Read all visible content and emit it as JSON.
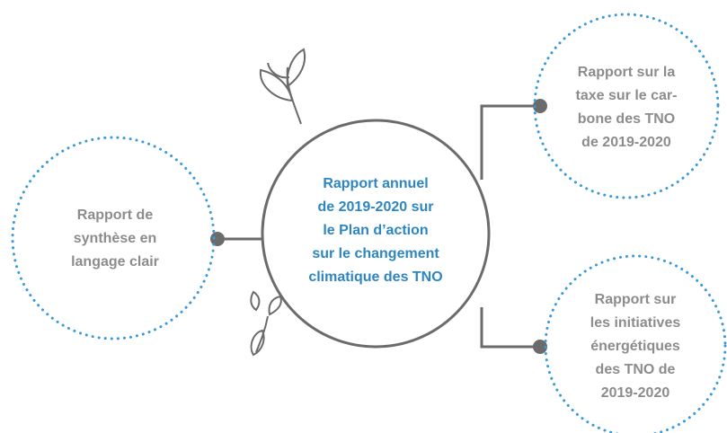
{
  "nodes": [
    {
      "lines": [
        "Rapport annuel",
        "de 2019-2020 sur",
        "le Plan d’action",
        "sur le changement",
        "climatique des TNO"
      ]
    },
    {
      "lines": [
        "Rapport de",
        "synthèse en",
        "langage clair"
      ]
    },
    {
      "lines": [
        "Rapport sur la",
        "taxe sur le car-",
        "bone des TNO",
        "de 2019-2020"
      ]
    },
    {
      "lines": [
        "Rapport sur",
        "les initiatives",
        "énergétiques",
        "des TNO de",
        "2019-2020"
      ]
    }
  ]
}
